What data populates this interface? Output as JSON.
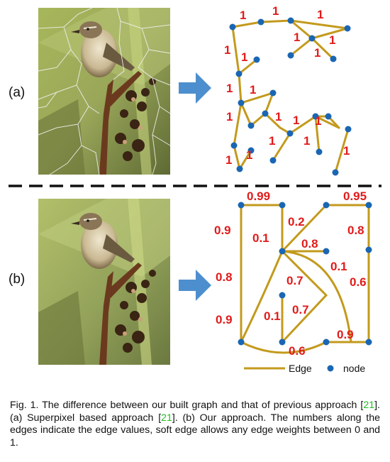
{
  "panels": {
    "a": {
      "label": "(a)"
    },
    "b": {
      "label": "(b)"
    }
  },
  "colors": {
    "edge": "#c39a1d",
    "node": "#1a66b3",
    "weight_text": "#e11b1b",
    "arrow": "#4d8fce",
    "ref": "#1fbf1f"
  },
  "graph_a": {
    "weights": [
      "1",
      "1",
      "1",
      "1",
      "1",
      "1",
      "1",
      "1",
      "1",
      "1",
      "1",
      "1",
      "1",
      "1",
      "1",
      "1"
    ]
  },
  "graph_b": {
    "weights": [
      "0.99",
      "0.95",
      "0.9",
      "0.2",
      "0.8",
      "0.1",
      "0.8",
      "0.8",
      "0.1",
      "0.6",
      "0.7",
      "0.9",
      "0.1",
      "0.7",
      "0.9",
      "0.6"
    ]
  },
  "legend": {
    "edge_label": "Edge",
    "node_label": "node"
  },
  "caption": {
    "part1": "Fig. 1.  The difference between our built graph and that of previous approach [",
    "ref1": "21",
    "part2": "]. (a) Superpixel based approach [",
    "ref2": "21",
    "part3": "]. (b) Our approach. The numbers along the edges indicate the edge values, soft edge allows any edge weights between 0 and 1."
  }
}
